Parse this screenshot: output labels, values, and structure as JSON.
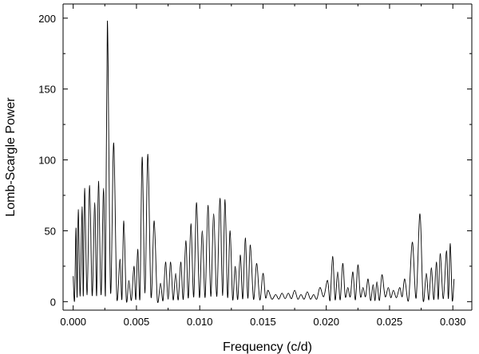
{
  "chart_data": {
    "type": "line",
    "title": "",
    "xlabel": "Frequency (c/d)",
    "ylabel": "Lomb-Scargle Power",
    "xlim": [
      -0.0008,
      0.0315
    ],
    "ylim": [
      -6,
      210
    ],
    "xticks": [
      0.0,
      0.005,
      0.01,
      0.015,
      0.02,
      0.025,
      0.03
    ],
    "xtick_labels": [
      "0.000",
      "0.005",
      "0.010",
      "0.015",
      "0.020",
      "0.025",
      "0.030"
    ],
    "yticks": [
      0,
      50,
      100,
      150,
      200
    ],
    "ytick_labels": [
      "0",
      "50",
      "100",
      "150",
      "200"
    ],
    "grid": false,
    "legend": "none",
    "line_color": "#000000",
    "series": [
      {
        "peaks": [
          [
            0.0,
            18
          ],
          [
            0.00022,
            52
          ],
          [
            0.0004,
            65
          ],
          [
            0.0007,
            67
          ],
          [
            0.0009,
            80
          ],
          [
            0.0013,
            82
          ],
          [
            0.0017,
            70
          ],
          [
            0.002,
            85
          ],
          [
            0.0024,
            80
          ],
          [
            0.0027,
            198
          ],
          [
            0.0032,
            112
          ],
          [
            0.0037,
            30
          ],
          [
            0.004,
            57
          ],
          [
            0.0044,
            15
          ],
          [
            0.0048,
            25
          ],
          [
            0.0051,
            37
          ],
          [
            0.00545,
            102
          ],
          [
            0.0059,
            104
          ],
          [
            0.0064,
            57
          ],
          [
            0.0069,
            13
          ],
          [
            0.0073,
            28
          ],
          [
            0.0077,
            28
          ],
          [
            0.0081,
            20
          ],
          [
            0.0085,
            28
          ],
          [
            0.0089,
            43
          ],
          [
            0.0093,
            55
          ],
          [
            0.00975,
            70
          ],
          [
            0.0102,
            50
          ],
          [
            0.01065,
            68
          ],
          [
            0.0111,
            62
          ],
          [
            0.0116,
            73
          ],
          [
            0.012,
            72
          ],
          [
            0.0124,
            50
          ],
          [
            0.0128,
            25
          ],
          [
            0.0132,
            33
          ],
          [
            0.0136,
            45
          ],
          [
            0.014,
            40
          ],
          [
            0.0145,
            27
          ],
          [
            0.015,
            20
          ],
          [
            0.0154,
            8
          ],
          [
            0.016,
            5
          ],
          [
            0.0165,
            6
          ],
          [
            0.017,
            6
          ],
          [
            0.0175,
            8
          ],
          [
            0.018,
            5
          ],
          [
            0.0185,
            7
          ],
          [
            0.019,
            5
          ],
          [
            0.0195,
            10
          ],
          [
            0.0201,
            15
          ],
          [
            0.0205,
            32
          ],
          [
            0.0209,
            21
          ],
          [
            0.0213,
            27
          ],
          [
            0.0217,
            10
          ],
          [
            0.0221,
            21
          ],
          [
            0.0225,
            26
          ],
          [
            0.0229,
            10
          ],
          [
            0.0233,
            16
          ],
          [
            0.0237,
            12
          ],
          [
            0.024,
            14
          ],
          [
            0.0244,
            19
          ],
          [
            0.0249,
            10
          ],
          [
            0.0253,
            8
          ],
          [
            0.0258,
            10
          ],
          [
            0.0262,
            16
          ],
          [
            0.0268,
            42
          ],
          [
            0.0274,
            62
          ],
          [
            0.0279,
            20
          ],
          [
            0.0283,
            24
          ],
          [
            0.0287,
            28
          ],
          [
            0.029,
            34
          ],
          [
            0.0295,
            36
          ],
          [
            0.0298,
            41
          ],
          [
            0.0301,
            16
          ]
        ]
      }
    ]
  }
}
